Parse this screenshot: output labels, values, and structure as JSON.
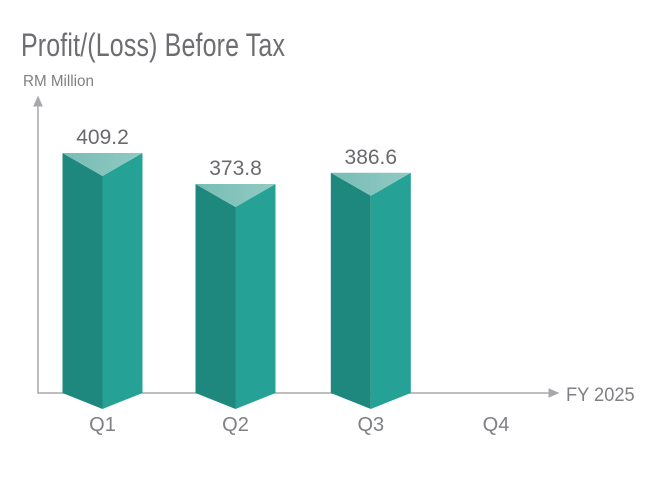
{
  "chart_data": {
    "type": "bar",
    "bar_style": "3d-triangular-prism",
    "title": "Profit/(Loss) Before Tax",
    "ylabel": "RM Million",
    "xlabel": "FY 2025",
    "categories": [
      "Q1",
      "Q2",
      "Q3",
      "Q4"
    ],
    "values": [
      409.2,
      373.8,
      386.6,
      null
    ],
    "value_labels": [
      "409.2",
      "373.8",
      "386.6"
    ],
    "ylim": [
      135,
      464
    ],
    "grid": false,
    "legend": false,
    "colors": {
      "bar_left_face": "#1e887e",
      "bar_right_face": "#26a196",
      "bar_top_left": "#77bdb5",
      "bar_top_right": "#90cac3",
      "axis": "#a6a8ab",
      "title_text": "#6d6e71",
      "axis_label_text": "#7e8083",
      "value_label_text": "#696a6d"
    }
  }
}
